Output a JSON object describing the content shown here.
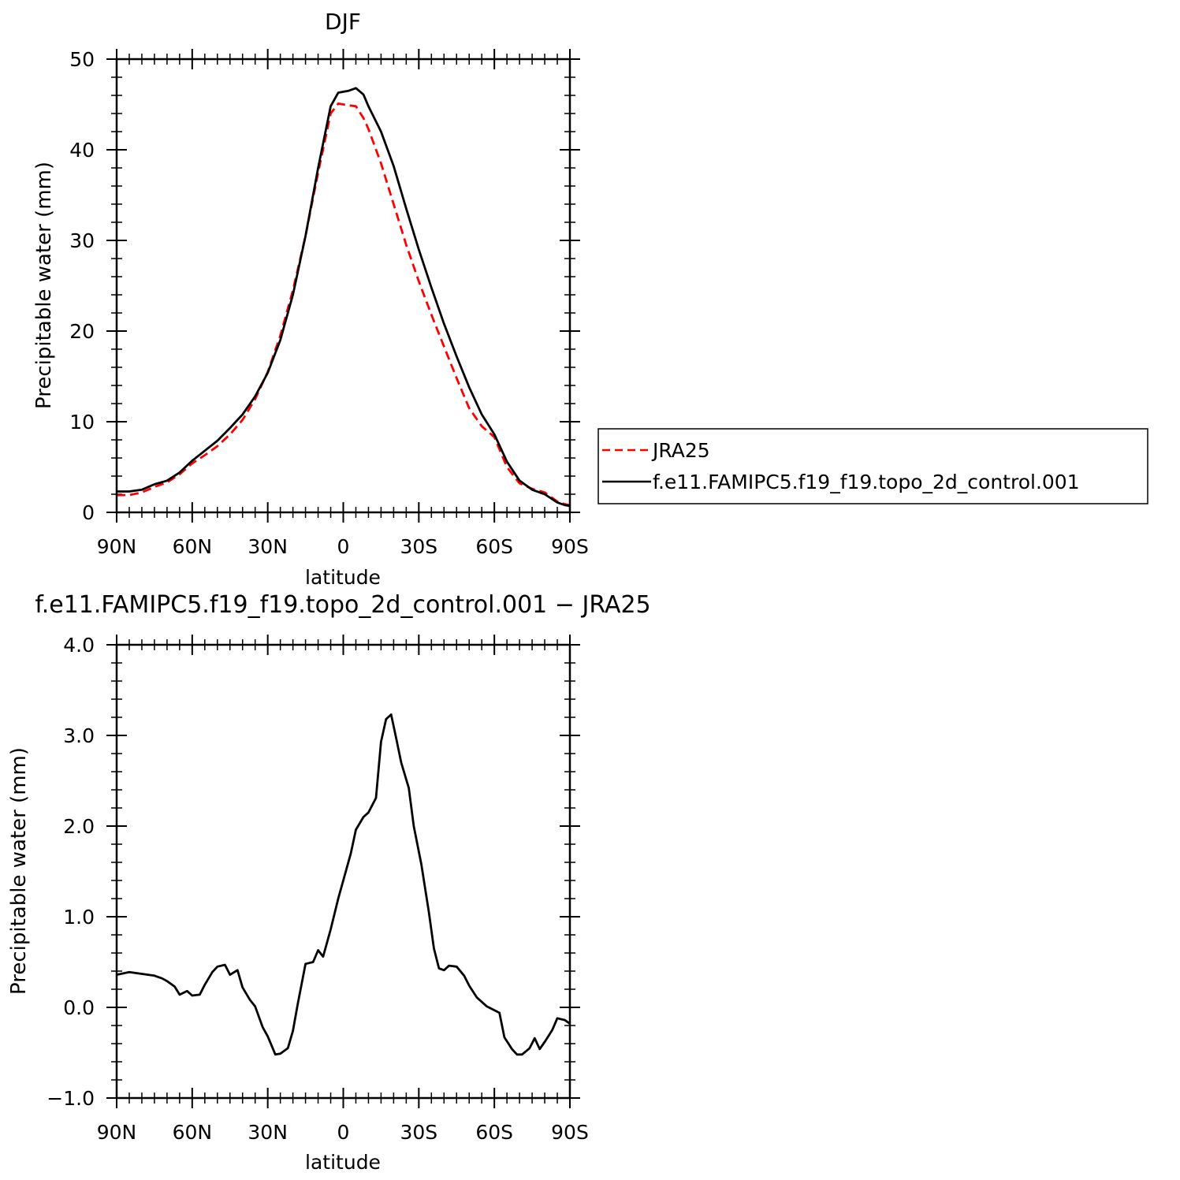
{
  "chart_data": [
    {
      "type": "line",
      "title": "DJF",
      "xlabel": "latitude",
      "ylabel": "Precipitable water (mm)",
      "xlim": [
        90,
        -90
      ],
      "ylim": [
        0,
        50
      ],
      "xticks": [
        {
          "value": 90,
          "label": "90N"
        },
        {
          "value": 60,
          "label": "60N"
        },
        {
          "value": 30,
          "label": "30N"
        },
        {
          "value": 0,
          "label": "0"
        },
        {
          "value": -30,
          "label": "30S"
        },
        {
          "value": -60,
          "label": "60S"
        },
        {
          "value": -90,
          "label": "90S"
        }
      ],
      "yticks": [
        {
          "value": 0,
          "label": "0"
        },
        {
          "value": 10,
          "label": "10"
        },
        {
          "value": 20,
          "label": "20"
        },
        {
          "value": 30,
          "label": "30"
        },
        {
          "value": 40,
          "label": "40"
        },
        {
          "value": 50,
          "label": "50"
        }
      ],
      "legend_position": "right",
      "series": [
        {
          "name": "JRA25",
          "color": "#ff0000",
          "dashed": true,
          "x": [
            90,
            85,
            80,
            75,
            70,
            65,
            60,
            55,
            50,
            45,
            40,
            35,
            30,
            25,
            20,
            15,
            10,
            5,
            2,
            0,
            -2,
            -5,
            -8,
            -10,
            -15,
            -20,
            -25,
            -30,
            -35,
            -40,
            -45,
            -50,
            -55,
            -60,
            -65,
            -70,
            -75,
            -80,
            -85,
            -88,
            -90
          ],
          "y": [
            1.9,
            1.9,
            2.2,
            2.8,
            3.3,
            4.2,
            5.4,
            6.3,
            7.3,
            8.6,
            10.2,
            12.5,
            15.5,
            19.5,
            24.5,
            30.5,
            37.5,
            44.0,
            45.1,
            45.0,
            44.9,
            44.8,
            43.5,
            42.3,
            38.5,
            34.0,
            29.5,
            25.5,
            21.8,
            18.3,
            14.8,
            11.5,
            9.5,
            8.3,
            5.0,
            3.2,
            2.6,
            2.2,
            1.2,
            0.9,
            0.8
          ]
        },
        {
          "name": "f.e11.FAMIPC5.f19_f19.topo_2d_control.001",
          "color": "#000000",
          "dashed": false,
          "x": [
            90,
            85,
            80,
            75,
            70,
            65,
            60,
            55,
            50,
            45,
            40,
            35,
            30,
            25,
            20,
            15,
            10,
            5,
            2,
            0,
            -2,
            -5,
            -8,
            -10,
            -15,
            -20,
            -25,
            -30,
            -35,
            -40,
            -45,
            -50,
            -55,
            -60,
            -65,
            -70,
            -75,
            -80,
            -85,
            -88,
            -90
          ],
          "y": [
            2.3,
            2.3,
            2.5,
            3.1,
            3.5,
            4.4,
            5.7,
            6.8,
            7.9,
            9.3,
            10.8,
            12.8,
            15.4,
            19.0,
            24.0,
            30.5,
            38.0,
            44.8,
            46.3,
            46.4,
            46.5,
            46.8,
            46.1,
            44.8,
            42.0,
            38.2,
            33.5,
            29.0,
            24.8,
            20.8,
            17.2,
            13.8,
            10.8,
            8.6,
            5.6,
            3.5,
            2.5,
            2.0,
            1.1,
            0.8,
            0.7
          ]
        }
      ]
    },
    {
      "type": "line",
      "title": "f.e11.FAMIPC5.f19_f19.topo_2d_control.001 − JRA25",
      "xlabel": "latitude",
      "ylabel": "Precipitable water (mm)",
      "xlim": [
        90,
        -90
      ],
      "ylim": [
        -1.0,
        4.0
      ],
      "xticks": [
        {
          "value": 90,
          "label": "90N"
        },
        {
          "value": 60,
          "label": "60N"
        },
        {
          "value": 30,
          "label": "30N"
        },
        {
          "value": 0,
          "label": "0"
        },
        {
          "value": -30,
          "label": "30S"
        },
        {
          "value": -60,
          "label": "60S"
        },
        {
          "value": -90,
          "label": "90S"
        }
      ],
      "yticks": [
        {
          "value": -1.0,
          "label": "−1.0"
        },
        {
          "value": 0.0,
          "label": "0.0"
        },
        {
          "value": 1.0,
          "label": "1.0"
        },
        {
          "value": 2.0,
          "label": "2.0"
        },
        {
          "value": 3.0,
          "label": "3.0"
        },
        {
          "value": 4.0,
          "label": "4.0"
        }
      ],
      "series": [
        {
          "color": "#000000",
          "dashed": false,
          "x": [
            90,
            85,
            80,
            75,
            72,
            70,
            67,
            65,
            62,
            60,
            57,
            55,
            52,
            50,
            47,
            45,
            42,
            40,
            37,
            35,
            32,
            30,
            27,
            25,
            22,
            20,
            18,
            15,
            12,
            10,
            8,
            5,
            2,
            0,
            -3,
            -5,
            -8,
            -10,
            -13,
            -15,
            -17,
            -19,
            -21,
            -23,
            -26,
            -28,
            -31,
            -34,
            -36,
            -38,
            -40,
            -42,
            -45,
            -48,
            -50,
            -53,
            -57,
            -62,
            -64,
            -67,
            -69,
            -71,
            -74,
            -76,
            -78,
            -80,
            -83,
            -85,
            -88,
            -90
          ],
          "y": [
            0.36,
            0.39,
            0.37,
            0.35,
            0.32,
            0.29,
            0.23,
            0.14,
            0.18,
            0.13,
            0.14,
            0.25,
            0.39,
            0.45,
            0.47,
            0.36,
            0.41,
            0.22,
            0.08,
            0.01,
            -0.22,
            -0.32,
            -0.52,
            -0.51,
            -0.45,
            -0.26,
            0.05,
            0.48,
            0.5,
            0.63,
            0.56,
            0.86,
            1.2,
            1.4,
            1.7,
            1.96,
            2.1,
            2.15,
            2.31,
            2.93,
            3.18,
            3.23,
            2.97,
            2.7,
            2.42,
            2.0,
            1.58,
            1.05,
            0.65,
            0.43,
            0.41,
            0.46,
            0.45,
            0.35,
            0.24,
            0.11,
            0.01,
            -0.06,
            -0.33,
            -0.46,
            -0.52,
            -0.52,
            -0.45,
            -0.34,
            -0.46,
            -0.38,
            -0.25,
            -0.12,
            -0.14,
            -0.18
          ]
        }
      ]
    }
  ]
}
